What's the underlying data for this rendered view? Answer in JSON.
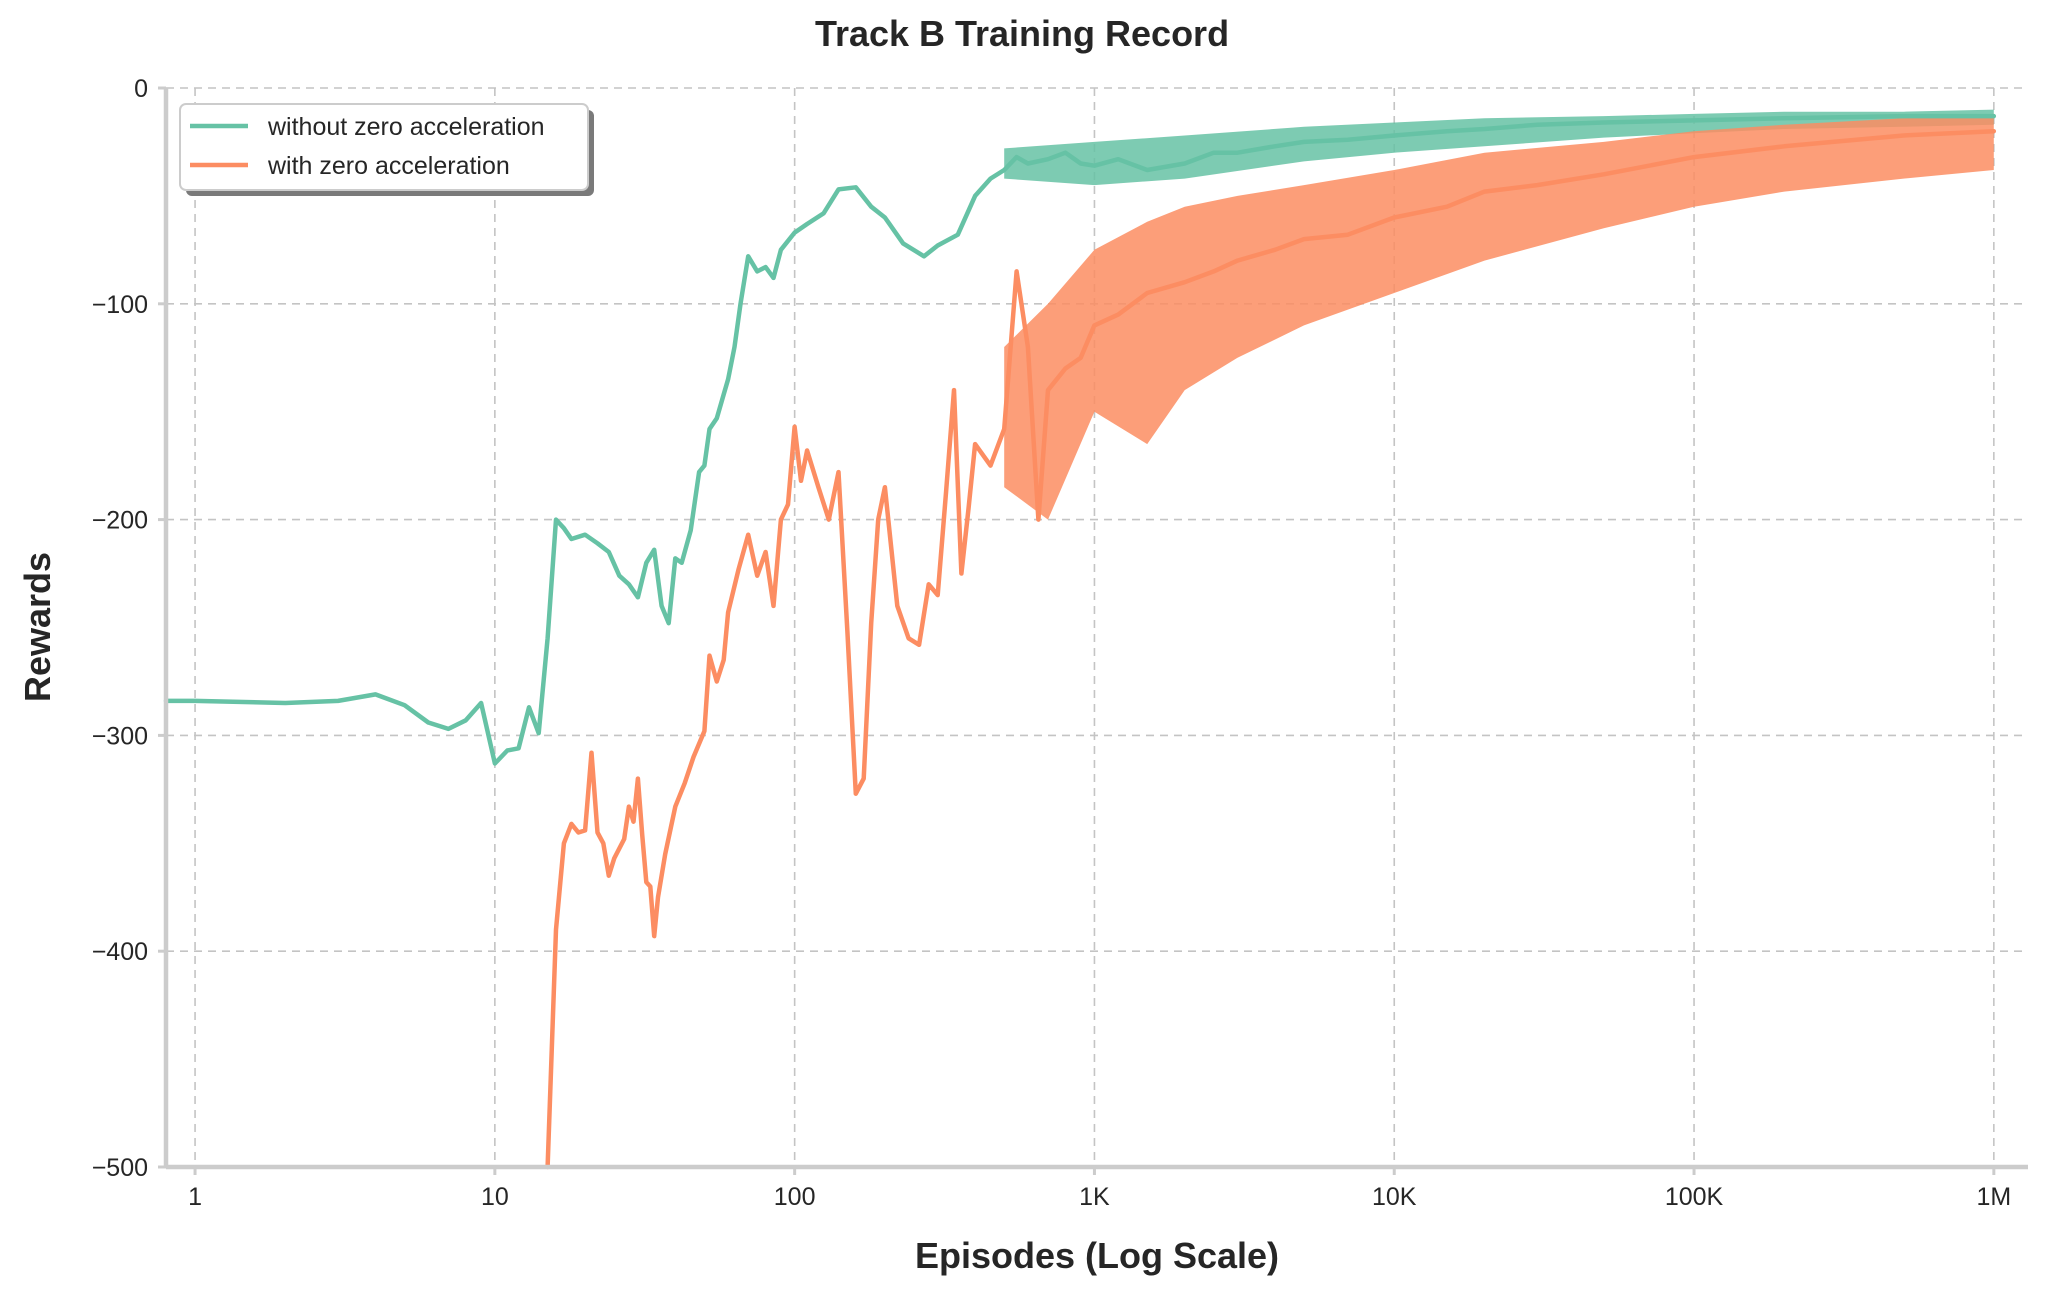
{
  "chart_data": {
    "type": "line",
    "title": "Track B Training Record",
    "xlabel": "Episodes (Log Scale)",
    "ylabel": "Rewards",
    "x_scale": "log",
    "xlim": [
      0.8,
      1300000
    ],
    "ylim": [
      -500,
      0
    ],
    "grid": true,
    "legend_position": "top-left",
    "x_ticks": [
      {
        "value": 1,
        "label": "1"
      },
      {
        "value": 10,
        "label": "10"
      },
      {
        "value": 100,
        "label": "100"
      },
      {
        "value": 1000,
        "label": "1K"
      },
      {
        "value": 10000,
        "label": "10K"
      },
      {
        "value": 100000,
        "label": "100K"
      },
      {
        "value": 1000000,
        "label": "1M"
      }
    ],
    "y_ticks": [
      {
        "value": 0,
        "label": "0"
      },
      {
        "value": -100,
        "label": "−100"
      },
      {
        "value": -200,
        "label": "−200"
      },
      {
        "value": -300,
        "label": "−300"
      },
      {
        "value": -400,
        "label": "−400"
      },
      {
        "value": -500,
        "label": "−500"
      }
    ],
    "series": [
      {
        "name": "without zero acceleration",
        "color": "#66c2a5",
        "points": [
          [
            0.8,
            -284
          ],
          [
            1,
            -284
          ],
          [
            2,
            -285
          ],
          [
            3,
            -284
          ],
          [
            4,
            -281
          ],
          [
            5,
            -286
          ],
          [
            6,
            -294
          ],
          [
            7,
            -297
          ],
          [
            8,
            -293
          ],
          [
            9,
            -285
          ],
          [
            10,
            -313
          ],
          [
            11,
            -307
          ],
          [
            12,
            -306
          ],
          [
            13,
            -287
          ],
          [
            14,
            -299
          ],
          [
            15,
            -255
          ],
          [
            16,
            -200
          ],
          [
            17,
            -204
          ],
          [
            18,
            -209
          ],
          [
            20,
            -207
          ],
          [
            22,
            -211
          ],
          [
            24,
            -215
          ],
          [
            26,
            -226
          ],
          [
            28,
            -230
          ],
          [
            30,
            -236
          ],
          [
            32,
            -220
          ],
          [
            34,
            -214
          ],
          [
            36,
            -240
          ],
          [
            38,
            -248
          ],
          [
            40,
            -218
          ],
          [
            42,
            -220
          ],
          [
            45,
            -205
          ],
          [
            48,
            -178
          ],
          [
            50,
            -175
          ],
          [
            52,
            -158
          ],
          [
            55,
            -153
          ],
          [
            58,
            -142
          ],
          [
            60,
            -135
          ],
          [
            63,
            -120
          ],
          [
            66,
            -100
          ],
          [
            70,
            -78
          ],
          [
            75,
            -85
          ],
          [
            80,
            -83
          ],
          [
            85,
            -88
          ],
          [
            90,
            -75
          ],
          [
            100,
            -67
          ],
          [
            110,
            -63
          ],
          [
            125,
            -58
          ],
          [
            140,
            -47
          ],
          [
            160,
            -46
          ],
          [
            180,
            -55
          ],
          [
            200,
            -60
          ],
          [
            230,
            -72
          ],
          [
            270,
            -78
          ],
          [
            300,
            -73
          ],
          [
            350,
            -68
          ],
          [
            400,
            -50
          ],
          [
            450,
            -42
          ],
          [
            500,
            -38
          ],
          [
            550,
            -32
          ],
          [
            600,
            -35
          ],
          [
            700,
            -33
          ],
          [
            800,
            -30
          ],
          [
            900,
            -35
          ],
          [
            1000,
            -36
          ],
          [
            1200,
            -33
          ],
          [
            1500,
            -38
          ],
          [
            2000,
            -35
          ],
          [
            2500,
            -30
          ],
          [
            3000,
            -30
          ],
          [
            4000,
            -27
          ],
          [
            5000,
            -25
          ],
          [
            7000,
            -24
          ],
          [
            10000,
            -22
          ],
          [
            15000,
            -20
          ],
          [
            20000,
            -19
          ],
          [
            30000,
            -17
          ],
          [
            50000,
            -16
          ],
          [
            100000,
            -15
          ],
          [
            200000,
            -14
          ],
          [
            500000,
            -13
          ],
          [
            1000000,
            -13
          ]
        ],
        "band": [
          [
            500,
            -42,
            -28
          ],
          [
            1000,
            -45,
            -25
          ],
          [
            2000,
            -42,
            -22
          ],
          [
            5000,
            -34,
            -18
          ],
          [
            10000,
            -30,
            -16
          ],
          [
            20000,
            -27,
            -14
          ],
          [
            50000,
            -23,
            -13
          ],
          [
            100000,
            -21,
            -12
          ],
          [
            200000,
            -19,
            -11
          ],
          [
            500000,
            -18,
            -11
          ],
          [
            1000000,
            -17,
            -10
          ]
        ]
      },
      {
        "name": "with zero acceleration",
        "color": "#fc8d62",
        "points": [
          [
            15,
            -500
          ],
          [
            16,
            -390
          ],
          [
            17,
            -350
          ],
          [
            18,
            -341
          ],
          [
            19,
            -345
          ],
          [
            20,
            -344
          ],
          [
            21,
            -308
          ],
          [
            22,
            -345
          ],
          [
            23,
            -350
          ],
          [
            24,
            -365
          ],
          [
            25,
            -357
          ],
          [
            27,
            -348
          ],
          [
            28,
            -333
          ],
          [
            29,
            -340
          ],
          [
            30,
            -320
          ],
          [
            31,
            -346
          ],
          [
            32,
            -368
          ],
          [
            33,
            -370
          ],
          [
            34,
            -393
          ],
          [
            35,
            -375
          ],
          [
            37,
            -355
          ],
          [
            40,
            -333
          ],
          [
            43,
            -322
          ],
          [
            46,
            -310
          ],
          [
            50,
            -298
          ],
          [
            52,
            -263
          ],
          [
            55,
            -275
          ],
          [
            58,
            -265
          ],
          [
            60,
            -243
          ],
          [
            65,
            -223
          ],
          [
            70,
            -207
          ],
          [
            75,
            -226
          ],
          [
            80,
            -215
          ],
          [
            85,
            -240
          ],
          [
            90,
            -200
          ],
          [
            95,
            -193
          ],
          [
            100,
            -157
          ],
          [
            105,
            -182
          ],
          [
            110,
            -168
          ],
          [
            120,
            -185
          ],
          [
            130,
            -200
          ],
          [
            140,
            -178
          ],
          [
            150,
            -252
          ],
          [
            160,
            -327
          ],
          [
            170,
            -320
          ],
          [
            180,
            -248
          ],
          [
            190,
            -200
          ],
          [
            200,
            -185
          ],
          [
            220,
            -240
          ],
          [
            240,
            -255
          ],
          [
            260,
            -258
          ],
          [
            280,
            -230
          ],
          [
            300,
            -235
          ],
          [
            320,
            -187
          ],
          [
            340,
            -140
          ],
          [
            360,
            -225
          ],
          [
            380,
            -195
          ],
          [
            400,
            -165
          ],
          [
            450,
            -175
          ],
          [
            500,
            -158
          ],
          [
            550,
            -85
          ],
          [
            600,
            -120
          ],
          [
            650,
            -200
          ],
          [
            700,
            -140
          ],
          [
            800,
            -130
          ],
          [
            900,
            -125
          ],
          [
            1000,
            -110
          ],
          [
            1200,
            -105
          ],
          [
            1500,
            -95
          ],
          [
            2000,
            -90
          ],
          [
            2500,
            -85
          ],
          [
            3000,
            -80
          ],
          [
            4000,
            -75
          ],
          [
            5000,
            -70
          ],
          [
            7000,
            -68
          ],
          [
            10000,
            -60
          ],
          [
            15000,
            -55
          ],
          [
            20000,
            -48
          ],
          [
            30000,
            -45
          ],
          [
            50000,
            -40
          ],
          [
            100000,
            -32
          ],
          [
            200000,
            -27
          ],
          [
            500000,
            -22
          ],
          [
            1000000,
            -20
          ]
        ],
        "band": [
          [
            500,
            -185,
            -120
          ],
          [
            700,
            -200,
            -100
          ],
          [
            1000,
            -150,
            -75
          ],
          [
            1500,
            -165,
            -62
          ],
          [
            2000,
            -140,
            -55
          ],
          [
            3000,
            -125,
            -50
          ],
          [
            5000,
            -110,
            -45
          ],
          [
            10000,
            -95,
            -38
          ],
          [
            20000,
            -80,
            -30
          ],
          [
            50000,
            -65,
            -25
          ],
          [
            100000,
            -55,
            -20
          ],
          [
            200000,
            -48,
            -17
          ],
          [
            500000,
            -42,
            -14
          ],
          [
            1000000,
            -38,
            -12
          ]
        ]
      }
    ]
  }
}
